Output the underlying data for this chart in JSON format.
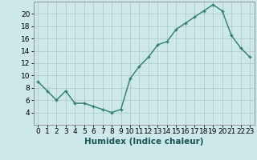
{
  "x": [
    0,
    1,
    2,
    3,
    4,
    5,
    6,
    7,
    8,
    9,
    10,
    11,
    12,
    13,
    14,
    15,
    16,
    17,
    18,
    19,
    20,
    21,
    22,
    23
  ],
  "y": [
    9,
    7.5,
    6,
    7.5,
    5.5,
    5.5,
    5,
    4.5,
    4,
    4.5,
    9.5,
    11.5,
    13,
    15,
    15.5,
    17.5,
    18.5,
    19.5,
    20.5,
    21.5,
    20.5,
    16.5,
    14.5,
    13
  ],
  "xlabel": "Humidex (Indice chaleur)",
  "xlim": [
    -0.5,
    23.5
  ],
  "ylim": [
    2,
    22
  ],
  "yticks": [
    4,
    6,
    8,
    10,
    12,
    14,
    16,
    18,
    20
  ],
  "xticks": [
    0,
    1,
    2,
    3,
    4,
    5,
    6,
    7,
    8,
    9,
    10,
    11,
    12,
    13,
    14,
    15,
    16,
    17,
    18,
    19,
    20,
    21,
    22,
    23
  ],
  "line_color": "#2e7d6e",
  "marker": "+",
  "bg_color": "#cce8e8",
  "grid_color": "#b0cccc",
  "label_fontsize": 7.5,
  "tick_fontsize": 6.5
}
